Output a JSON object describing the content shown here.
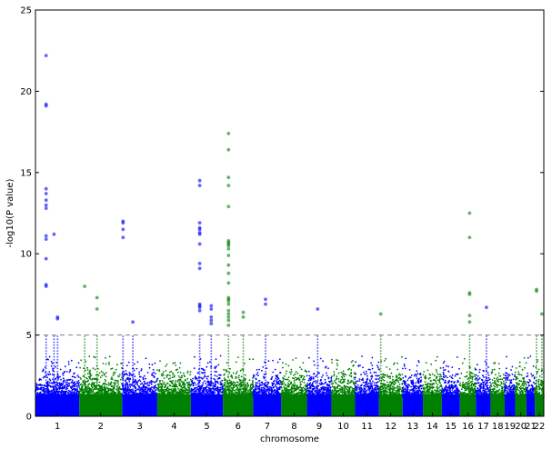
{
  "chart_data": {
    "type": "scatter",
    "subtype": "manhattan",
    "title": "",
    "xlabel": "chromosome",
    "ylabel": "-log10(P value)",
    "ylim": [
      0,
      25
    ],
    "y_ticks": [
      0,
      5,
      10,
      15,
      20,
      25
    ],
    "significance_threshold": 5.0,
    "threshold_line_style": "dashed",
    "colors": {
      "odd_chromosome": "#0000ff",
      "even_chromosome": "#008000",
      "threshold": "#808080"
    },
    "chromosome_order": [
      "1",
      "2",
      "3",
      "4",
      "5",
      "6",
      "7",
      "8",
      "9",
      "10",
      "11",
      "12",
      "13",
      "14",
      "15",
      "16",
      "17",
      "18",
      "19",
      "20",
      "21",
      "22"
    ],
    "chromosome_spans": {
      "1": [
        0,
        248
      ],
      "2": [
        248,
        490
      ],
      "3": [
        490,
        688
      ],
      "4": [
        688,
        878
      ],
      "5": [
        878,
        1059
      ],
      "6": [
        1059,
        1230
      ],
      "7": [
        1230,
        1389
      ],
      "8": [
        1389,
        1534
      ],
      "9": [
        1534,
        1672
      ],
      "10": [
        1672,
        1806
      ],
      "11": [
        1806,
        1941
      ],
      "12": [
        1941,
        2074
      ],
      "13": [
        2074,
        2189
      ],
      "14": [
        2189,
        2296
      ],
      "15": [
        2296,
        2398
      ],
      "16": [
        2398,
        2488
      ],
      "17": [
        2488,
        2571
      ],
      "18": [
        2571,
        2651
      ],
      "19": [
        2651,
        2710
      ],
      "20": [
        2710,
        2774
      ],
      "21": [
        2774,
        2821
      ],
      "22": [
        2821,
        2872
      ]
    },
    "xlim": [
      0,
      2872
    ],
    "tick_labels": [
      "1",
      "2",
      "3",
      "4",
      "5",
      "6",
      "7",
      "8",
      "9",
      "10",
      "11",
      "12",
      "13",
      "14",
      "15",
      "16",
      "17",
      "18",
      "19",
      "20",
      "21",
      "22"
    ],
    "peaks": [
      {
        "chrom": "1",
        "pos": 60,
        "values": [
          22.2,
          19.2,
          19.1,
          14,
          13.7,
          13.3,
          13.0,
          12.8,
          11.1,
          10.9,
          9.7,
          8.1,
          8.0
        ]
      },
      {
        "chrom": "1",
        "pos": 105,
        "values": [
          11.2
        ]
      },
      {
        "chrom": "1",
        "pos": 125,
        "values": [
          6.1,
          6.0
        ]
      },
      {
        "chrom": "2",
        "pos": 30,
        "values": [
          8.0
        ]
      },
      {
        "chrom": "2",
        "pos": 100,
        "values": [
          7.3,
          6.6
        ]
      },
      {
        "chrom": "3",
        "pos": 5,
        "values": [
          12.0,
          11.9,
          11.5,
          11.0
        ]
      },
      {
        "chrom": "3",
        "pos": 60,
        "values": [
          5.8
        ]
      },
      {
        "chrom": "5",
        "pos": 50,
        "values": [
          14.5,
          14.2,
          11.9,
          11.6,
          11.5,
          11.3,
          11.2,
          10.6,
          9.4,
          9.1,
          6.9,
          6.8,
          6.7,
          6.5
        ]
      },
      {
        "chrom": "5",
        "pos": 115,
        "values": [
          6.8,
          6.6,
          6.1,
          5.9,
          5.7
        ]
      },
      {
        "chrom": "6",
        "pos": 32,
        "values": [
          17.4,
          16.4,
          14.7,
          14.2,
          12.9,
          10.8,
          10.7,
          10.6,
          10.5,
          10.3,
          9.9,
          9.3,
          8.8,
          8.2,
          7.3,
          7.2,
          7.1,
          6.9,
          6.5,
          6.3,
          6.1,
          5.9,
          5.6
        ]
      },
      {
        "chrom": "6",
        "pos": 115,
        "values": [
          6.4,
          6.1
        ]
      },
      {
        "chrom": "7",
        "pos": 70,
        "values": [
          7.2,
          6.9
        ]
      },
      {
        "chrom": "9",
        "pos": 60,
        "values": [
          6.6
        ]
      },
      {
        "chrom": "12",
        "pos": 10,
        "values": [
          6.3
        ]
      },
      {
        "chrom": "16",
        "pos": 55,
        "values": [
          12.5,
          11.0,
          7.6,
          7.5,
          6.2,
          5.8
        ]
      },
      {
        "chrom": "17",
        "pos": 60,
        "values": [
          6.7
        ]
      },
      {
        "chrom": "22",
        "pos": 10,
        "values": [
          7.8,
          7.7
        ]
      },
      {
        "chrom": "22",
        "pos": 40,
        "values": [
          6.3
        ]
      }
    ]
  }
}
